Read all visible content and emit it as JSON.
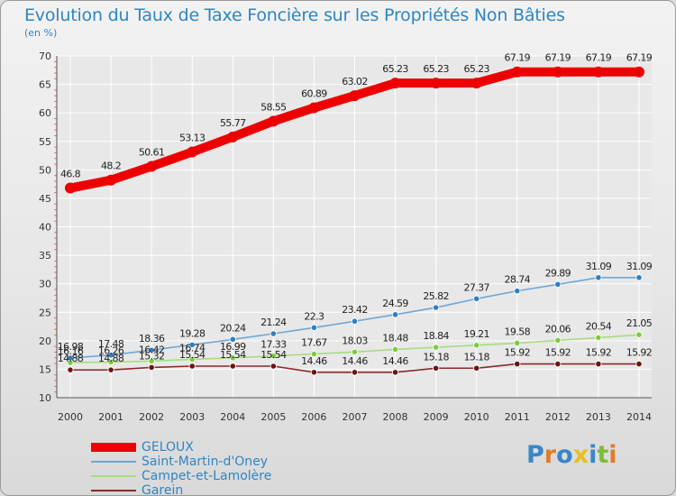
{
  "title": "Evolution du Taux de Taxe Foncière sur les Propriétés Non Bâties",
  "unit": "(en %)",
  "logo_text": "Proxiti",
  "colors": {
    "title": "#2f86c2",
    "axis": "#555555",
    "grid": "#ffffff"
  },
  "chart_data": {
    "type": "line",
    "x": [
      "2000",
      "2001",
      "2002",
      "2003",
      "2004",
      "2005",
      "2006",
      "2007",
      "2008",
      "2009",
      "2010",
      "2011",
      "2012",
      "2013",
      "2014"
    ],
    "ylim": [
      10,
      70
    ],
    "yticks": [
      10,
      15,
      20,
      25,
      30,
      35,
      40,
      45,
      50,
      55,
      60,
      65,
      70
    ],
    "grid": true,
    "legend_position": "bottom-left",
    "series": [
      {
        "name": "GELOUX",
        "color": "#ee0000",
        "marker_color": "#ee0000",
        "values": [
          46.8,
          48.2,
          50.61,
          53.13,
          55.77,
          58.55,
          60.89,
          63.02,
          65.23,
          65.23,
          65.23,
          67.19,
          67.19,
          67.19,
          67.19
        ],
        "labels": [
          "46.8",
          "48.2",
          "50.61",
          "53.13",
          "55.77",
          "58.55",
          "60.89",
          "63.02",
          "65.23",
          "65.23",
          "65.23",
          "67.19",
          "67.19",
          "67.19",
          "67.19"
        ]
      },
      {
        "name": "Saint-Martin-d'Oney",
        "color": "#6ea6d4",
        "marker_color": "#2f7fc0",
        "values": [
          16.98,
          17.48,
          18.36,
          19.28,
          20.24,
          21.24,
          22.3,
          23.42,
          24.59,
          25.82,
          27.37,
          28.74,
          29.89,
          31.09,
          31.09
        ],
        "labels": [
          "16.98",
          "17.48",
          "18.36",
          "19.28",
          "20.24",
          "21.24",
          "22.3",
          "23.42",
          "24.59",
          "25.82",
          "27.37",
          "28.74",
          "29.89",
          "31.09",
          "31.09"
        ]
      },
      {
        "name": "Campet-et-Lamolère",
        "color": "#a8dc7c",
        "marker_color": "#7ccc3c",
        "values": [
          16.16,
          16.26,
          16.42,
          16.74,
          16.99,
          17.33,
          17.67,
          18.03,
          18.48,
          18.84,
          19.21,
          19.58,
          20.06,
          20.54,
          21.05
        ],
        "labels": [
          "16.16",
          "16.26",
          "16.42",
          "16.74",
          "16.99",
          "17.33",
          "17.67",
          "18.03",
          "18.48",
          "18.84",
          "19.21",
          "19.58",
          "20.06",
          "20.54",
          "21.05"
        ]
      },
      {
        "name": "Garein",
        "color": "#8a2a2a",
        "marker_color": "#6b1414",
        "values": [
          14.88,
          14.88,
          15.32,
          15.54,
          15.54,
          15.54,
          14.46,
          14.46,
          14.46,
          15.18,
          15.18,
          15.92,
          15.92,
          15.92,
          15.92
        ],
        "labels": [
          "14.88",
          "14.88",
          "15.32",
          "15.54",
          "15.54",
          "15.54",
          "14.46",
          "14.46",
          "14.46",
          "15.18",
          "15.18",
          "15.92",
          "15.92",
          "15.92",
          "15.92"
        ]
      }
    ]
  }
}
